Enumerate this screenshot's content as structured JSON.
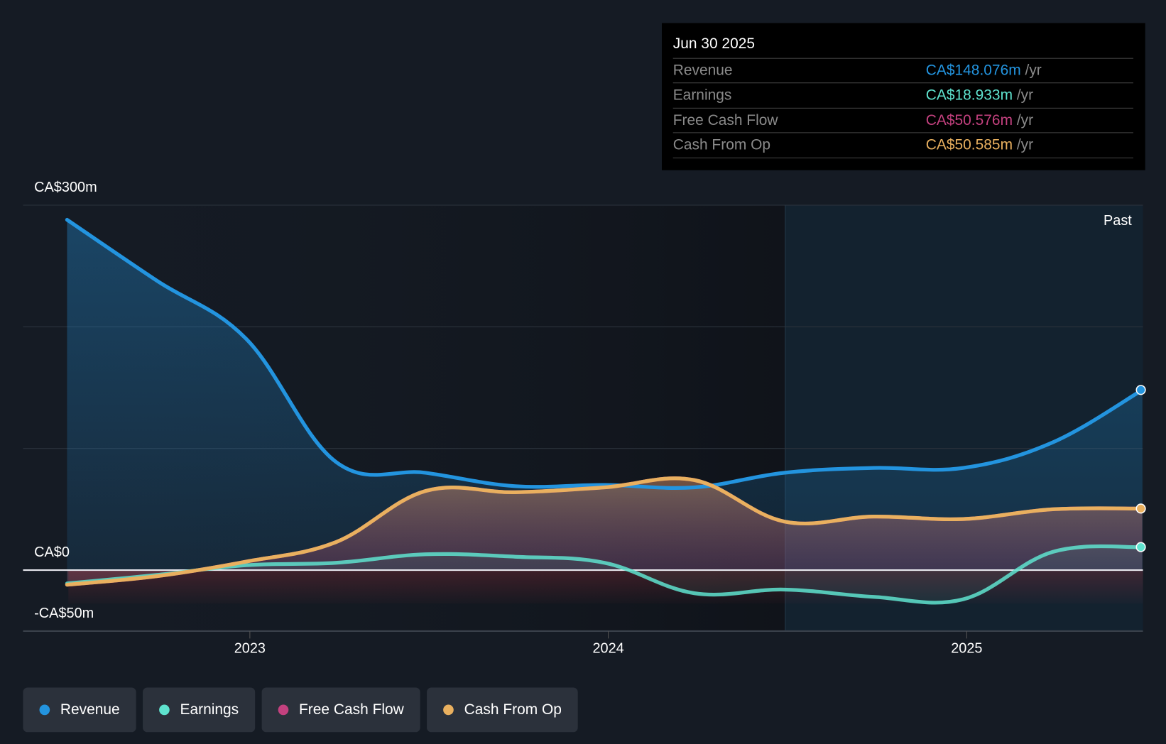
{
  "tooltip": {
    "date": "Jun 30 2025",
    "rows": [
      {
        "label": "Revenue",
        "value": "CA$148.076m",
        "unit": "/yr",
        "color": "#2394df"
      },
      {
        "label": "Earnings",
        "value": "CA$18.933m",
        "unit": "/yr",
        "color": "#5fe3cf"
      },
      {
        "label": "Free Cash Flow",
        "value": "CA$50.576m",
        "unit": "/yr",
        "color": "#c4417f"
      },
      {
        "label": "Cash From Op",
        "value": "CA$50.585m",
        "unit": "/yr",
        "color": "#e9b05f"
      }
    ]
  },
  "past_label": "Past",
  "chart_data": {
    "type": "line",
    "title": "",
    "xlabel": "",
    "ylabel": "",
    "ylim": [
      -50,
      300
    ],
    "y_ticks": [
      {
        "value": 300,
        "label": "CA$300m"
      },
      {
        "value": 0,
        "label": "CA$0"
      },
      {
        "value": -50,
        "label": "-CA$50m"
      }
    ],
    "x_ticks": [
      {
        "value": 2023,
        "label": "2023"
      },
      {
        "value": 2024,
        "label": "2024"
      },
      {
        "value": 2025,
        "label": "2025"
      }
    ],
    "xlim": [
      2022.37,
      2025.5
    ],
    "x": [
      2022.49,
      2022.74,
      2022.99,
      2023.24,
      2023.49,
      2023.74,
      2023.99,
      2024.24,
      2024.49,
      2024.74,
      2024.99,
      2025.24,
      2025.49
    ],
    "series": [
      {
        "name": "Revenue",
        "color": "#2394df",
        "values": [
          288,
          238,
          190,
          89,
          80,
          69,
          70,
          68,
          80,
          84,
          84,
          105,
          148.076
        ]
      },
      {
        "name": "Earnings",
        "color": "#5fe3cf",
        "values": [
          -11,
          -4,
          4,
          6,
          13,
          11,
          6,
          -19,
          -16,
          -22,
          -24,
          15,
          18.933
        ]
      },
      {
        "name": "Free Cash Flow",
        "color": "#c4417f",
        "values": [
          -12,
          -5,
          7,
          23,
          65,
          64,
          68,
          74,
          40,
          44,
          42,
          50,
          50.576
        ]
      },
      {
        "name": "Cash From Op",
        "color": "#e9b05f",
        "values": [
          -12,
          -5,
          7,
          23,
          65,
          64,
          68,
          74,
          40,
          44,
          42,
          50,
          50.585
        ]
      }
    ],
    "legend": [
      "Revenue",
      "Earnings",
      "Free Cash Flow",
      "Cash From Op"
    ],
    "legend_placement": "bottom-left",
    "grid": true
  }
}
